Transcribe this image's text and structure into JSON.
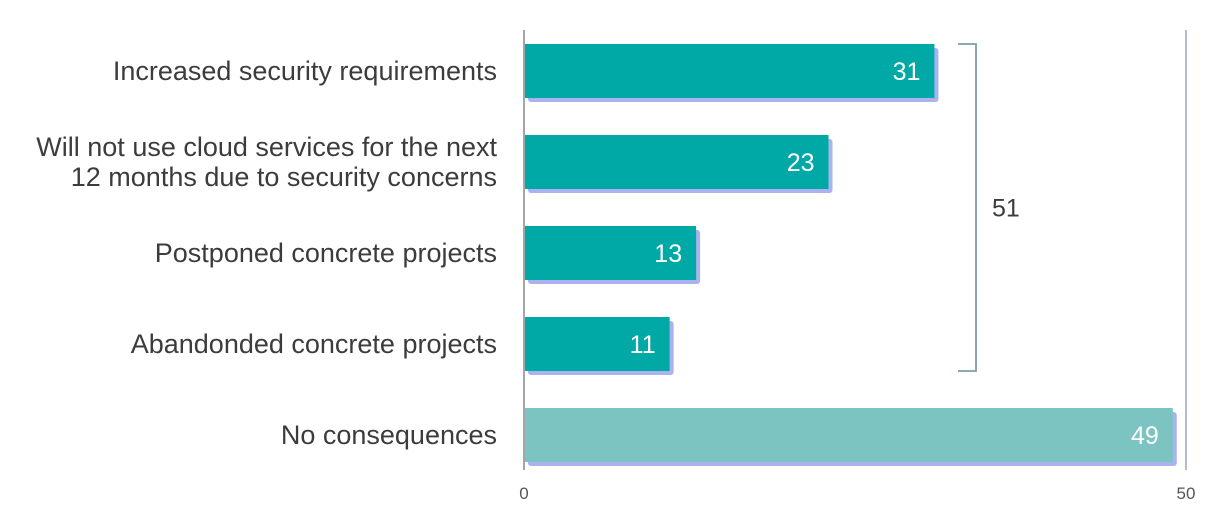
{
  "chart_data": {
    "type": "bar",
    "orientation": "horizontal",
    "categories": [
      [
        "Increased security requirements"
      ],
      [
        "Will not use cloud services for the next",
        "12 months due to security concerns"
      ],
      [
        "Postponed concrete projects"
      ],
      [
        "Abandonded concrete projects"
      ],
      [
        "No consequences"
      ]
    ],
    "values": [
      31,
      23,
      13,
      11,
      49
    ],
    "colors": [
      "#00a9a5",
      "#00a9a5",
      "#00a9a5",
      "#00a9a5",
      "#7cc4c2"
    ],
    "shadow_color": "#aab2f0",
    "xlim": [
      0,
      50
    ],
    "xticks": [
      "0",
      "50"
    ],
    "bracket": {
      "from_index": 0,
      "to_index": 3,
      "value": 51,
      "label": "51",
      "color": "#7d9dae"
    },
    "grid": false
  }
}
